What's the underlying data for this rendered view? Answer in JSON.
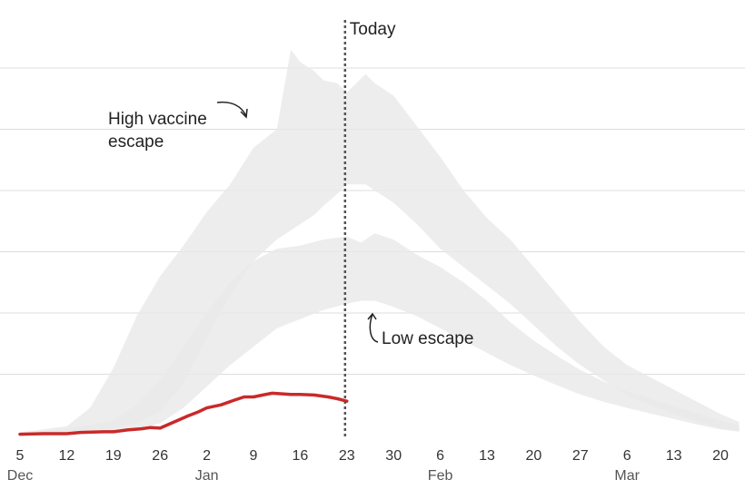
{
  "chart_data": {
    "type": "area",
    "title": "",
    "xlabel": "",
    "ylabel": "",
    "grid": true,
    "colors": {
      "band_fill": "#e9e9e9",
      "band_overlap": "#d9d9d9",
      "observed_line": "#c92a2a",
      "gridline": "#dddddd",
      "today_line": "#555555"
    },
    "x_ticks": [
      {
        "label": "5",
        "week": 0
      },
      {
        "label": "12",
        "week": 1
      },
      {
        "label": "19",
        "week": 2
      },
      {
        "label": "26",
        "week": 3
      },
      {
        "label": "2",
        "week": 4
      },
      {
        "label": "9",
        "week": 5
      },
      {
        "label": "16",
        "week": 6
      },
      {
        "label": "23",
        "week": 7
      },
      {
        "label": "30",
        "week": 8
      },
      {
        "label": "6",
        "week": 9
      },
      {
        "label": "13",
        "week": 10
      },
      {
        "label": "20",
        "week": 11
      },
      {
        "label": "27",
        "week": 12
      },
      {
        "label": "6",
        "week": 13
      },
      {
        "label": "13",
        "week": 14
      },
      {
        "label": "20",
        "week": 15
      }
    ],
    "month_labels": [
      {
        "label": "Dec",
        "week": 0
      },
      {
        "label": "Jan",
        "week": 4
      },
      {
        "label": "Feb",
        "week": 9
      },
      {
        "label": "Mar",
        "week": 13
      }
    ],
    "y_gridlines": [
      1,
      2,
      3,
      4,
      5,
      6
    ],
    "ylim": [
      0,
      7
    ],
    "today": {
      "label": "Today",
      "week": 7
    },
    "series": [
      {
        "name": "High vaccine escape",
        "kind": "band",
        "points": [
          {
            "week": 0,
            "low": 0.0,
            "high": 0.05
          },
          {
            "week": 1,
            "low": 0.02,
            "high": 0.15
          },
          {
            "week": 1.5,
            "low": 0.05,
            "high": 0.45
          },
          {
            "week": 2,
            "low": 0.12,
            "high": 1.1
          },
          {
            "week": 2.5,
            "low": 0.2,
            "high": 1.95
          },
          {
            "week": 3,
            "low": 0.4,
            "high": 2.6
          },
          {
            "week": 3.5,
            "low": 0.85,
            "high": 3.1
          },
          {
            "week": 4,
            "low": 1.6,
            "high": 3.65
          },
          {
            "week": 4.5,
            "low": 2.3,
            "high": 4.1
          },
          {
            "week": 5,
            "low": 2.85,
            "high": 4.7
          },
          {
            "week": 5.5,
            "low": 3.2,
            "high": 5.0
          },
          {
            "week": 5.8,
            "low": 3.35,
            "high": 6.3
          },
          {
            "week": 6,
            "low": 3.45,
            "high": 6.1
          },
          {
            "week": 6.3,
            "low": 3.6,
            "high": 5.95
          },
          {
            "week": 6.5,
            "low": 3.75,
            "high": 5.8
          },
          {
            "week": 6.8,
            "low": 3.95,
            "high": 5.75
          },
          {
            "week": 7,
            "low": 4.1,
            "high": 5.6
          },
          {
            "week": 7.4,
            "low": 4.1,
            "high": 5.9
          },
          {
            "week": 7.6,
            "low": 4.0,
            "high": 5.75
          },
          {
            "week": 8,
            "low": 3.8,
            "high": 5.55
          },
          {
            "week": 8.5,
            "low": 3.45,
            "high": 5.05
          },
          {
            "week": 9,
            "low": 3.05,
            "high": 4.55
          },
          {
            "week": 9.5,
            "low": 2.75,
            "high": 4.0
          },
          {
            "week": 10,
            "low": 2.45,
            "high": 3.55
          },
          {
            "week": 10.5,
            "low": 2.15,
            "high": 3.2
          },
          {
            "week": 11,
            "low": 1.8,
            "high": 2.75
          },
          {
            "week": 11.5,
            "low": 1.45,
            "high": 2.3
          },
          {
            "week": 12,
            "low": 1.15,
            "high": 1.85
          },
          {
            "week": 12.5,
            "low": 0.9,
            "high": 1.45
          },
          {
            "week": 13,
            "low": 0.65,
            "high": 1.15
          },
          {
            "week": 13.5,
            "low": 0.5,
            "high": 0.95
          },
          {
            "week": 14,
            "low": 0.35,
            "high": 0.75
          },
          {
            "week": 14.5,
            "low": 0.22,
            "high": 0.55
          },
          {
            "week": 15,
            "low": 0.12,
            "high": 0.35
          },
          {
            "week": 15.4,
            "low": 0.08,
            "high": 0.22
          }
        ]
      },
      {
        "name": "Low escape",
        "kind": "band",
        "points": [
          {
            "week": 0,
            "low": 0.0,
            "high": 0.05
          },
          {
            "week": 1,
            "low": 0.02,
            "high": 0.1
          },
          {
            "week": 2,
            "low": 0.05,
            "high": 0.25
          },
          {
            "week": 2.5,
            "low": 0.1,
            "high": 0.5
          },
          {
            "week": 3,
            "low": 0.2,
            "high": 0.9
          },
          {
            "week": 3.5,
            "low": 0.45,
            "high": 1.45
          },
          {
            "week": 4,
            "low": 0.8,
            "high": 2.0
          },
          {
            "week": 4.5,
            "low": 1.15,
            "high": 2.5
          },
          {
            "week": 5,
            "low": 1.45,
            "high": 2.85
          },
          {
            "week": 5.5,
            "low": 1.75,
            "high": 3.05
          },
          {
            "week": 6,
            "low": 1.9,
            "high": 3.1
          },
          {
            "week": 6.5,
            "low": 2.05,
            "high": 3.2
          },
          {
            "week": 7,
            "low": 2.15,
            "high": 3.25
          },
          {
            "week": 7.3,
            "low": 2.2,
            "high": 3.15
          },
          {
            "week": 7.6,
            "low": 2.2,
            "high": 3.3
          },
          {
            "week": 8,
            "low": 2.1,
            "high": 3.2
          },
          {
            "week": 8.5,
            "low": 1.95,
            "high": 2.95
          },
          {
            "week": 9,
            "low": 1.75,
            "high": 2.75
          },
          {
            "week": 9.5,
            "low": 1.55,
            "high": 2.5
          },
          {
            "week": 10,
            "low": 1.35,
            "high": 2.2
          },
          {
            "week": 10.5,
            "low": 1.15,
            "high": 1.85
          },
          {
            "week": 11,
            "low": 0.98,
            "high": 1.55
          },
          {
            "week": 11.5,
            "low": 0.82,
            "high": 1.3
          },
          {
            "week": 12,
            "low": 0.67,
            "high": 1.07
          },
          {
            "week": 12.5,
            "low": 0.55,
            "high": 0.88
          },
          {
            "week": 13,
            "low": 0.45,
            "high": 0.72
          },
          {
            "week": 13.5,
            "low": 0.36,
            "high": 0.6
          },
          {
            "week": 14,
            "low": 0.27,
            "high": 0.48
          },
          {
            "week": 14.5,
            "low": 0.18,
            "high": 0.36
          },
          {
            "week": 15,
            "low": 0.1,
            "high": 0.24
          },
          {
            "week": 15.4,
            "low": 0.06,
            "high": 0.16
          }
        ]
      },
      {
        "name": "",
        "kind": "observed",
        "points": [
          {
            "week": 0,
            "value": 0.02
          },
          {
            "week": 0.5,
            "value": 0.03
          },
          {
            "week": 1,
            "value": 0.03
          },
          {
            "week": 1.3,
            "value": 0.05
          },
          {
            "week": 1.8,
            "value": 0.06
          },
          {
            "week": 2,
            "value": 0.06
          },
          {
            "week": 2.3,
            "value": 0.09
          },
          {
            "week": 2.6,
            "value": 0.11
          },
          {
            "week": 2.8,
            "value": 0.13
          },
          {
            "week": 3,
            "value": 0.12
          },
          {
            "week": 3.3,
            "value": 0.22
          },
          {
            "week": 3.6,
            "value": 0.32
          },
          {
            "week": 3.8,
            "value": 0.38
          },
          {
            "week": 4,
            "value": 0.45
          },
          {
            "week": 4.3,
            "value": 0.5
          },
          {
            "week": 4.6,
            "value": 0.58
          },
          {
            "week": 4.8,
            "value": 0.63
          },
          {
            "week": 5,
            "value": 0.63
          },
          {
            "week": 5.2,
            "value": 0.66
          },
          {
            "week": 5.4,
            "value": 0.69
          },
          {
            "week": 5.8,
            "value": 0.67
          },
          {
            "week": 6,
            "value": 0.67
          },
          {
            "week": 6.3,
            "value": 0.66
          },
          {
            "week": 6.6,
            "value": 0.63
          },
          {
            "week": 6.8,
            "value": 0.6
          },
          {
            "week": 7,
            "value": 0.56
          }
        ]
      }
    ],
    "annotations": [
      {
        "lines": [
          "High vaccine",
          "escape"
        ],
        "points_to": "High vaccine escape"
      },
      {
        "lines": [
          "Low escape"
        ],
        "points_to": "Low escape"
      }
    ]
  }
}
